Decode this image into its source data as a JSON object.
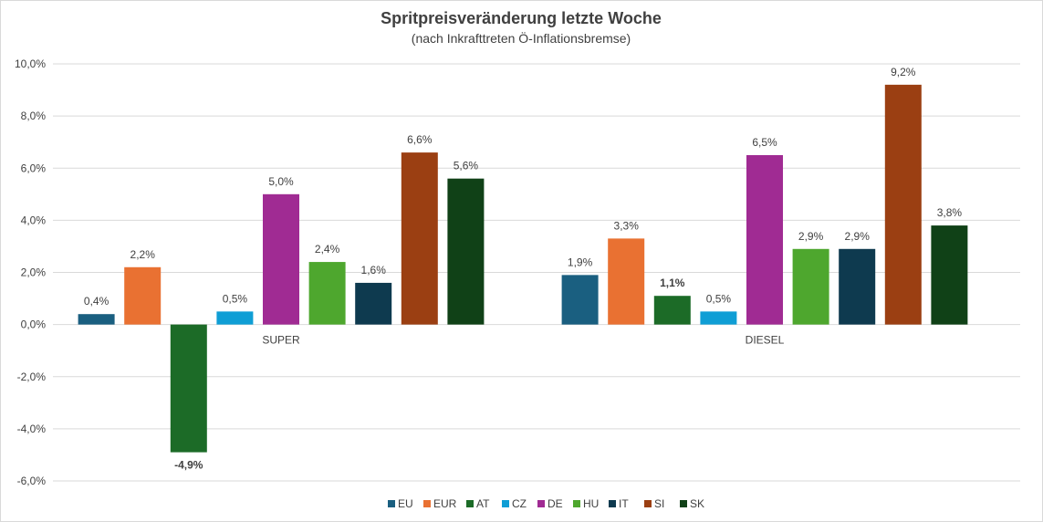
{
  "chart_data": {
    "type": "bar",
    "title": "Spritpreisveränderung letzte Woche",
    "subtitle": "(nach Inkrafttreten Ö-Inflationsbremse)",
    "xlabel": "",
    "ylabel": "",
    "ylim": [
      -6,
      10
    ],
    "yticks": [
      -6,
      -4,
      -2,
      0,
      2,
      4,
      6,
      8,
      10
    ],
    "ytick_labels": [
      "-6,0%",
      "-4,0%",
      "-2,0%",
      "0,0%",
      "2,0%",
      "4,0%",
      "6,0%",
      "8,0%",
      "10,0%"
    ],
    "grid": true,
    "legend_position": "bottom",
    "categories": [
      "SUPER",
      "DIESEL"
    ],
    "series": [
      {
        "name": "EU",
        "color": "#1a5f80",
        "values": [
          0.4,
          1.9
        ],
        "labels": [
          "0,4%",
          "1,9%"
        ]
      },
      {
        "name": "EUR",
        "color": "#e97132",
        "values": [
          2.2,
          3.3
        ],
        "labels": [
          "2,2%",
          "3,3%"
        ]
      },
      {
        "name": "AT",
        "color": "#1c6b27",
        "values": [
          -4.9,
          1.1
        ],
        "labels": [
          "-4,9%",
          "1,1%"
        ],
        "bold_labels": true
      },
      {
        "name": "CZ",
        "color": "#0f9ed5",
        "values": [
          0.5,
          0.5
        ],
        "labels": [
          "0,5%",
          "0,5%"
        ]
      },
      {
        "name": "DE",
        "color": "#a02b93",
        "values": [
          5.0,
          6.5
        ],
        "labels": [
          "5,0%",
          "6,5%"
        ]
      },
      {
        "name": "HU",
        "color": "#4ea72e",
        "values": [
          2.4,
          2.9
        ],
        "labels": [
          "2,4%",
          "2,9%"
        ]
      },
      {
        "name": "IT",
        "color": "#0e3a4f",
        "values": [
          1.6,
          2.9
        ],
        "labels": [
          "1,6%",
          "2,9%"
        ]
      },
      {
        "name": "SI",
        "color": "#9b3f12",
        "values": [
          6.6,
          9.2
        ],
        "labels": [
          "6,6%",
          "9,2%"
        ]
      },
      {
        "name": "SK",
        "color": "#104117",
        "values": [
          5.6,
          3.8
        ],
        "labels": [
          "5,6%",
          "3,8%"
        ]
      }
    ]
  }
}
